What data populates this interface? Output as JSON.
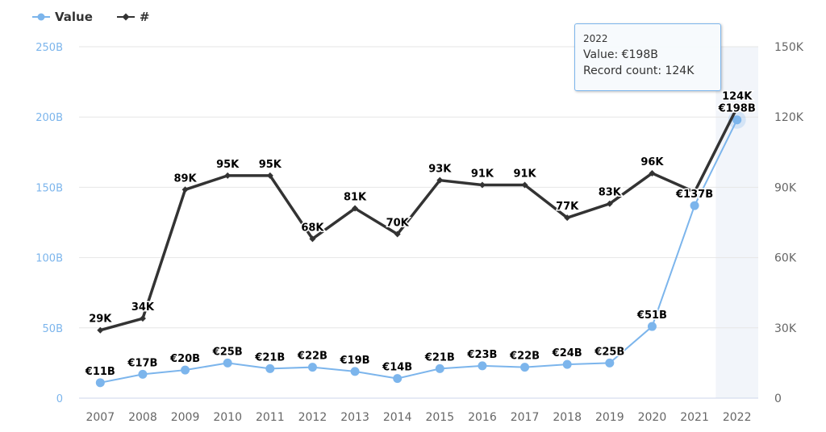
{
  "legend": [
    {
      "name": "Value",
      "color": "#7cb5ec",
      "icon": "circle-marker-icon"
    },
    {
      "name": "#",
      "color": "#333333",
      "icon": "diamond-marker-icon"
    }
  ],
  "tooltip": {
    "header": "2022",
    "value_label": "Value: €198B",
    "count_label": "Record count: 124K"
  },
  "chart_data": {
    "type": "line",
    "title": "",
    "xlabel": "",
    "categories": [
      "2007",
      "2008",
      "2009",
      "2010",
      "2011",
      "2012",
      "2013",
      "2014",
      "2015",
      "2016",
      "2017",
      "2018",
      "2019",
      "2020",
      "2021",
      "2022"
    ],
    "highlighted_category": "2022",
    "grid": true,
    "legend_position": "top-left",
    "y_left": {
      "label": "",
      "range": [
        0,
        250
      ],
      "unit": "B",
      "ticks": [
        0,
        50,
        100,
        150,
        200,
        250
      ],
      "tick_labels": [
        "0",
        "50B",
        "100B",
        "150B",
        "200B",
        "250B"
      ],
      "color": "#7cb5ec"
    },
    "y_right": {
      "label": "",
      "range": [
        0,
        150
      ],
      "unit": "K",
      "ticks": [
        0,
        30,
        60,
        90,
        120,
        150
      ],
      "tick_labels": [
        "0",
        "30K",
        "60K",
        "90K",
        "120K",
        "150K"
      ],
      "color": "#666666"
    },
    "series": [
      {
        "name": "Value",
        "axis": "left",
        "color": "#7cb5ec",
        "values": [
          11,
          17,
          20,
          25,
          21,
          22,
          19,
          14,
          21,
          23,
          22,
          24,
          25,
          51,
          137,
          198
        ],
        "labels": [
          "€11B",
          "€17B",
          "€20B",
          "€25B",
          "€21B",
          "€22B",
          "€19B",
          "€14B",
          "€21B",
          "€23B",
          "€22B",
          "€24B",
          "€25B",
          "€51B",
          "€137B",
          "€198B"
        ]
      },
      {
        "name": "#",
        "axis": "right",
        "color": "#333333",
        "values": [
          29,
          34,
          89,
          95,
          95,
          68,
          81,
          70,
          93,
          91,
          91,
          77,
          83,
          96,
          88,
          124
        ],
        "labels": [
          "29K",
          "34K",
          "89K",
          "95K",
          "95K",
          "68K",
          "81K",
          "70K",
          "93K",
          "91K",
          "91K",
          "77K",
          "83K",
          "96K",
          "",
          "124K"
        ]
      }
    ]
  }
}
